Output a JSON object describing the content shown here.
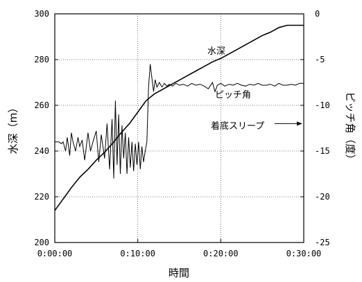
{
  "chart_data": {
    "type": "line",
    "xlabel": "時間",
    "ylabel_left": "水深（m）",
    "ylabel_right": "ピッチ角（度）",
    "x_ticks": [
      "0:00:00",
      "0:10:00",
      "0:20:00",
      "0:30:00"
    ],
    "x_tick_minutes": [
      0,
      10,
      20,
      30
    ],
    "xlim_minutes": [
      0,
      30
    ],
    "ylim_left": [
      200,
      300
    ],
    "y_ticks_left": [
      200,
      220,
      240,
      260,
      280,
      300
    ],
    "ylim_right": [
      -25,
      0
    ],
    "y_ticks_right": [
      -25,
      -20,
      -15,
      -10,
      -5,
      0
    ],
    "grid": "dotted",
    "series": [
      {
        "name": "水深",
        "axis": "left",
        "x_minutes": [
          0,
          1,
          2,
          3,
          4,
          5,
          6,
          7,
          8,
          9,
          10,
          11,
          12,
          13,
          14,
          15,
          16,
          17,
          18,
          19,
          20,
          21,
          22,
          23,
          24,
          25,
          26,
          27,
          28,
          29,
          30
        ],
        "values": [
          214,
          219,
          224,
          228.5,
          232,
          236,
          239.5,
          243.5,
          248,
          252,
          257,
          262,
          265,
          267,
          269,
          271,
          273,
          275,
          277,
          279,
          280.5,
          282.5,
          284.5,
          286.5,
          288.5,
          290.5,
          292,
          294,
          295,
          295,
          295
        ]
      },
      {
        "name": "ピッチ角",
        "axis": "right",
        "x_minutes": [
          0,
          0.5,
          0.8,
          1,
          1.3,
          1.5,
          1.8,
          2,
          2.2,
          2.5,
          2.8,
          3,
          3.3,
          3.6,
          4,
          4.3,
          4.6,
          5,
          5.3,
          5.6,
          6,
          6.3,
          6.6,
          6.9,
          7.1,
          7.3,
          7.5,
          7.7,
          7.9,
          8.1,
          8.3,
          8.5,
          8.7,
          8.9,
          9.1,
          9.3,
          9.5,
          9.7,
          9.9,
          10.1,
          10.3,
          10.5,
          10.7,
          10.9,
          11.1,
          11.3,
          11.5,
          11.7,
          11.9,
          12.1,
          12.3,
          12.6,
          12.9,
          13.2,
          13.5,
          13.8,
          14.2,
          14.6,
          15,
          15.5,
          16,
          16.5,
          17,
          17.5,
          18,
          18.5,
          19,
          19.3,
          19.6,
          20,
          20.5,
          21,
          21.5,
          22,
          22.5,
          23,
          23.5,
          24,
          24.5,
          25,
          25.5,
          26,
          26.5,
          27,
          27.5,
          28,
          28.5,
          29,
          29.5,
          30
        ],
        "values": [
          -14,
          -14,
          -14.2,
          -14,
          -15,
          -13.5,
          -15.5,
          -13,
          -14,
          -15,
          -13.5,
          -14.5,
          -13.8,
          -16,
          -13,
          -15,
          -14,
          -12.8,
          -16.2,
          -13.2,
          -15.8,
          -12,
          -17,
          -11.5,
          -18,
          -9.5,
          -16.5,
          -11,
          -17.5,
          -12.2,
          -15.8,
          -13,
          -17.5,
          -13.5,
          -16.8,
          -14,
          -17.2,
          -14.2,
          -16.5,
          -14,
          -17,
          -14.5,
          -16.2,
          -15,
          -14,
          -8,
          -5.5,
          -7,
          -8.5,
          -7.2,
          -8,
          -7.5,
          -8,
          -7.6,
          -7.9,
          -7.7,
          -7.9,
          -7.6,
          -7.8,
          -7.7,
          -7.9,
          -7.6,
          -7.8,
          -7.7,
          -7.9,
          -8.2,
          -7.5,
          -8.5,
          -7.8,
          -7.6,
          -7.9,
          -7.7,
          -7.8,
          -7.6,
          -7.8,
          -7.9,
          -7.7,
          -7.8,
          -7.6,
          -7.8,
          -7.8,
          -7.7,
          -7.9,
          -7.6,
          -7.8,
          -7.8,
          -7.7,
          -7.8,
          -7.6,
          -7.6
        ]
      }
    ],
    "annotations": [
      {
        "text": "水深",
        "series": "水深"
      },
      {
        "text": "ピッチ角",
        "series": "ピッチ角"
      },
      {
        "text": "着底スリープ",
        "arrow_to_minutes": 30,
        "arrow_to_right_value": -12
      }
    ]
  }
}
